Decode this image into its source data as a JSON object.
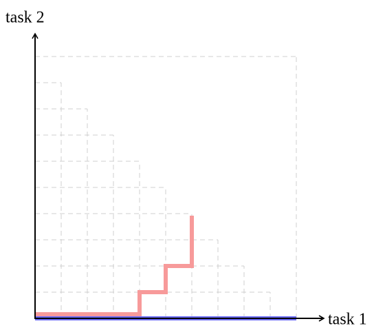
{
  "axes": {
    "x_label": "task 1",
    "y_label": "task 2"
  }
}
